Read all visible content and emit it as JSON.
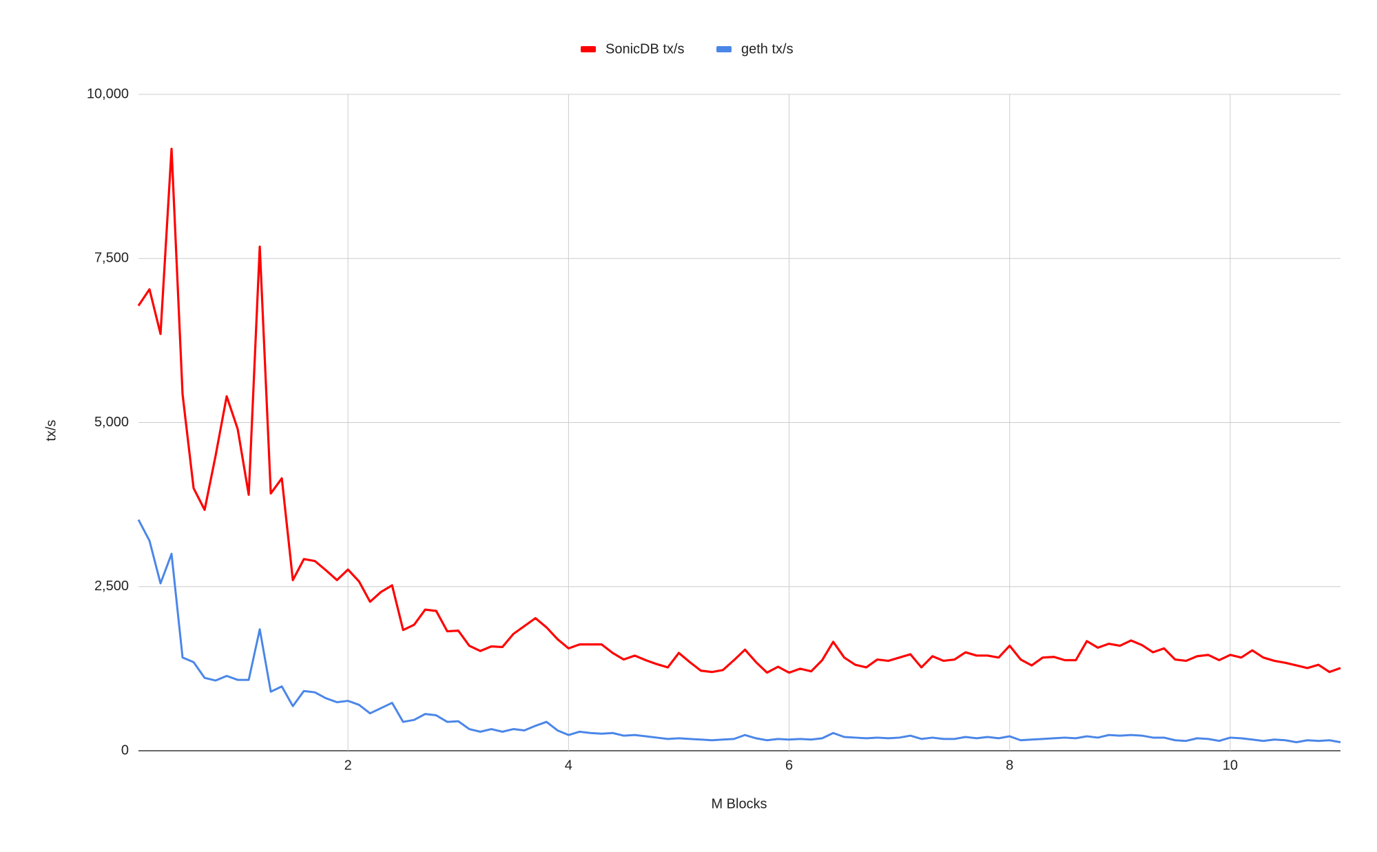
{
  "chart_data": {
    "type": "line",
    "x": [
      0.1,
      0.2,
      0.3,
      0.4,
      0.5,
      0.6,
      0.7,
      0.8,
      0.9,
      1.0,
      1.1,
      1.2,
      1.3,
      1.4,
      1.5,
      1.6,
      1.7,
      1.8,
      1.9,
      2.0,
      2.1,
      2.2,
      2.3,
      2.4,
      2.5,
      2.6,
      2.7,
      2.8,
      2.9,
      3.0,
      3.1,
      3.2,
      3.3,
      3.4,
      3.5,
      3.6,
      3.7,
      3.8,
      3.9,
      4.0,
      4.1,
      4.2,
      4.3,
      4.4,
      4.5,
      4.6,
      4.7,
      4.8,
      4.9,
      5.0,
      5.1,
      5.2,
      5.3,
      5.4,
      5.5,
      5.6,
      5.7,
      5.8,
      5.9,
      6.0,
      6.1,
      6.2,
      6.3,
      6.4,
      6.5,
      6.6,
      6.7,
      6.8,
      6.9,
      7.0,
      7.1,
      7.2,
      7.3,
      7.4,
      7.5,
      7.6,
      7.7,
      7.8,
      7.9,
      8.0,
      8.1,
      8.2,
      8.3,
      8.4,
      8.5,
      8.6,
      8.7,
      8.8,
      8.9,
      9.0,
      9.1,
      9.2,
      9.3,
      9.4,
      9.5,
      9.6,
      9.7,
      9.8,
      9.9,
      10.0,
      10.1,
      10.2,
      10.3,
      10.4,
      10.5,
      10.6,
      10.7,
      10.8,
      10.9,
      11.0
    ],
    "series": [
      {
        "name": "SonicDB tx/s",
        "color": "#ff0000",
        "values": [
          6780,
          7030,
          6350,
          9170,
          5430,
          4000,
          3670,
          4500,
          5400,
          4900,
          3900,
          7680,
          3920,
          4150,
          2600,
          2920,
          2890,
          2750,
          2600,
          2760,
          2580,
          2270,
          2420,
          2520,
          1840,
          1920,
          2150,
          2130,
          1820,
          1830,
          1600,
          1520,
          1590,
          1580,
          1780,
          1900,
          2020,
          1880,
          1700,
          1560,
          1620,
          1620,
          1620,
          1490,
          1390,
          1450,
          1380,
          1320,
          1270,
          1490,
          1350,
          1220,
          1200,
          1230,
          1380,
          1540,
          1350,
          1190,
          1280,
          1190,
          1250,
          1210,
          1380,
          1660,
          1420,
          1310,
          1270,
          1390,
          1370,
          1420,
          1470,
          1270,
          1440,
          1370,
          1390,
          1500,
          1450,
          1450,
          1420,
          1600,
          1390,
          1300,
          1420,
          1430,
          1380,
          1380,
          1670,
          1570,
          1630,
          1600,
          1680,
          1610,
          1500,
          1560,
          1390,
          1370,
          1440,
          1460,
          1380,
          1460,
          1420,
          1530,
          1420,
          1370,
          1340,
          1300,
          1260,
          1310,
          1200,
          1260
        ]
      },
      {
        "name": "geth tx/s",
        "color": "#4a86e8",
        "values": [
          3520,
          3200,
          2550,
          3000,
          1420,
          1350,
          1110,
          1070,
          1140,
          1080,
          1080,
          1850,
          900,
          980,
          680,
          910,
          890,
          800,
          740,
          760,
          700,
          570,
          650,
          730,
          440,
          470,
          560,
          540,
          440,
          450,
          330,
          290,
          330,
          290,
          330,
          310,
          380,
          440,
          310,
          240,
          290,
          270,
          260,
          270,
          230,
          240,
          220,
          200,
          180,
          190,
          180,
          170,
          160,
          170,
          180,
          240,
          190,
          160,
          180,
          170,
          180,
          170,
          190,
          270,
          210,
          200,
          190,
          200,
          190,
          200,
          230,
          180,
          200,
          180,
          180,
          210,
          190,
          210,
          190,
          220,
          160,
          170,
          180,
          190,
          200,
          190,
          220,
          200,
          240,
          230,
          240,
          230,
          200,
          200,
          160,
          150,
          190,
          180,
          150,
          200,
          190,
          170,
          150,
          170,
          160,
          130,
          160,
          150,
          160,
          130
        ]
      }
    ],
    "x_label": "M Blocks",
    "y_label": "tx/s",
    "xlim": [
      0.1,
      11
    ],
    "ylim": [
      0,
      10000
    ],
    "xticks": [
      2,
      4,
      6,
      8,
      10
    ],
    "yticks": [
      0,
      {
        "value": 2500,
        "label": "2,500"
      },
      {
        "value": 5000,
        "label": "5,000"
      },
      {
        "value": 7500,
        "label": "7,500"
      },
      {
        "value": 10000,
        "label": "10,000"
      }
    ],
    "grid": true,
    "legend": "top"
  }
}
